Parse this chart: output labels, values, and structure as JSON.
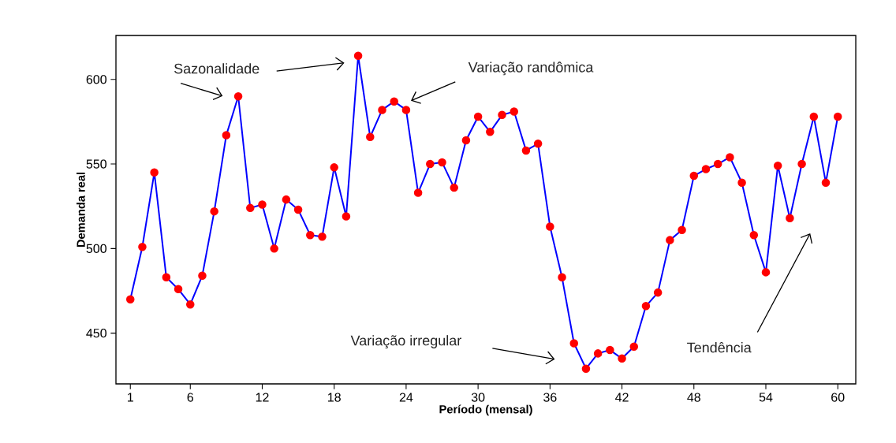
{
  "chart_data": {
    "type": "line",
    "xlabel": "Período (mensal)",
    "ylabel": "Demanda real",
    "x": [
      1,
      2,
      3,
      4,
      5,
      6,
      7,
      8,
      9,
      10,
      11,
      12,
      13,
      14,
      15,
      16,
      17,
      18,
      19,
      20,
      21,
      22,
      23,
      24,
      25,
      26,
      27,
      28,
      29,
      30,
      31,
      32,
      33,
      34,
      35,
      36,
      37,
      38,
      39,
      40,
      41,
      42,
      43,
      44,
      45,
      46,
      47,
      48,
      49,
      50,
      51,
      52,
      53,
      54,
      55,
      56,
      57,
      58,
      59,
      60
    ],
    "series": [
      {
        "color": "#0000ff",
        "values": [
          470,
          501,
          545,
          483,
          476,
          467,
          484,
          522,
          567,
          590,
          524,
          526,
          500,
          529,
          523,
          508,
          507,
          548,
          519,
          614,
          566,
          582,
          587,
          582,
          533,
          550,
          551,
          536,
          564,
          578,
          569,
          579,
          581,
          558,
          562,
          513,
          483,
          444,
          429,
          438,
          440,
          435,
          442,
          466,
          474,
          505,
          511,
          543,
          547,
          550,
          554,
          539,
          508,
          486,
          549,
          518,
          550,
          578,
          539,
          578
        ]
      }
    ],
    "xlim": [
      -0.2,
      61.5
    ],
    "ylim": [
      420,
      626
    ],
    "xticks": [
      1,
      6,
      12,
      18,
      24,
      30,
      36,
      42,
      48,
      54,
      60
    ],
    "yticks": [
      450,
      500,
      550,
      600
    ],
    "marker": "circle",
    "line_style": "solid",
    "grid": false,
    "annotations": [
      "Sazonalidade",
      "Variação randômica",
      "Variação irregular",
      "Tendência"
    ]
  }
}
